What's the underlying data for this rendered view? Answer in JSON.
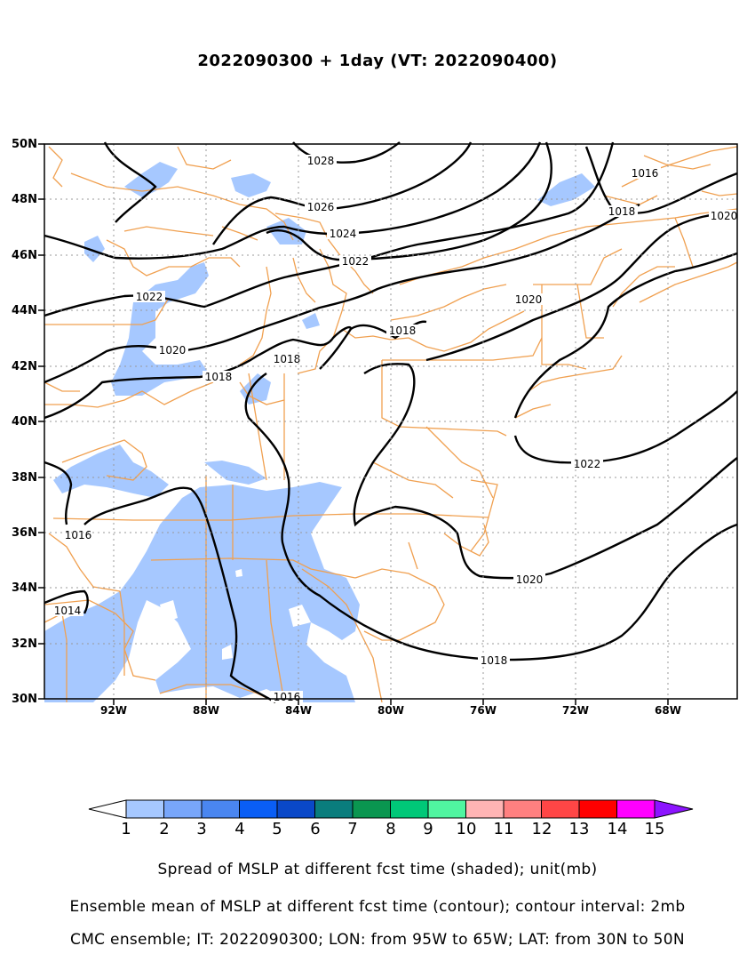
{
  "title": "2022090300 + 1day (VT: 2022090400)",
  "map": {
    "lat_labels": [
      "50N",
      "48N",
      "46N",
      "44N",
      "42N",
      "40N",
      "38N",
      "36N",
      "34N",
      "32N",
      "30N"
    ],
    "lon_labels": [
      "92W",
      "88W",
      "84W",
      "80W",
      "76W",
      "72W",
      "68W"
    ],
    "contour_labels": [
      "1028",
      "1026",
      "1024",
      "1022",
      "1022",
      "1020",
      "1020",
      "1018",
      "1018",
      "1018",
      "1016",
      "1018",
      "1020",
      "1022",
      "1016",
      "1020",
      "1018",
      "1014",
      "1016"
    ]
  },
  "colorbar": {
    "labels": [
      "1",
      "2",
      "3",
      "4",
      "5",
      "6",
      "7",
      "8",
      "9",
      "10",
      "11",
      "12",
      "13",
      "14",
      "15"
    ],
    "colors": [
      "#ffffff",
      "#a6c8ff",
      "#78a6fa",
      "#4a86f0",
      "#0a5ef5",
      "#0a48c8",
      "#0a7d7d",
      "#0a9650",
      "#00c878",
      "#50f5a0",
      "#ffb4b4",
      "#ff8080",
      "#ff4646",
      "#ff0000",
      "#ff00ff",
      "#8c14ff"
    ]
  },
  "captions": {
    "line1": "Spread of MSLP at different fcst time (shaded); unit(mb)",
    "line2": "Ensemble mean of MSLP at different fcst time (contour); contour interval: 2mb",
    "line3": "CMC ensemble; IT: 2022090300; LON: from 95W to 65W; LAT: from 30N to 50N"
  }
}
